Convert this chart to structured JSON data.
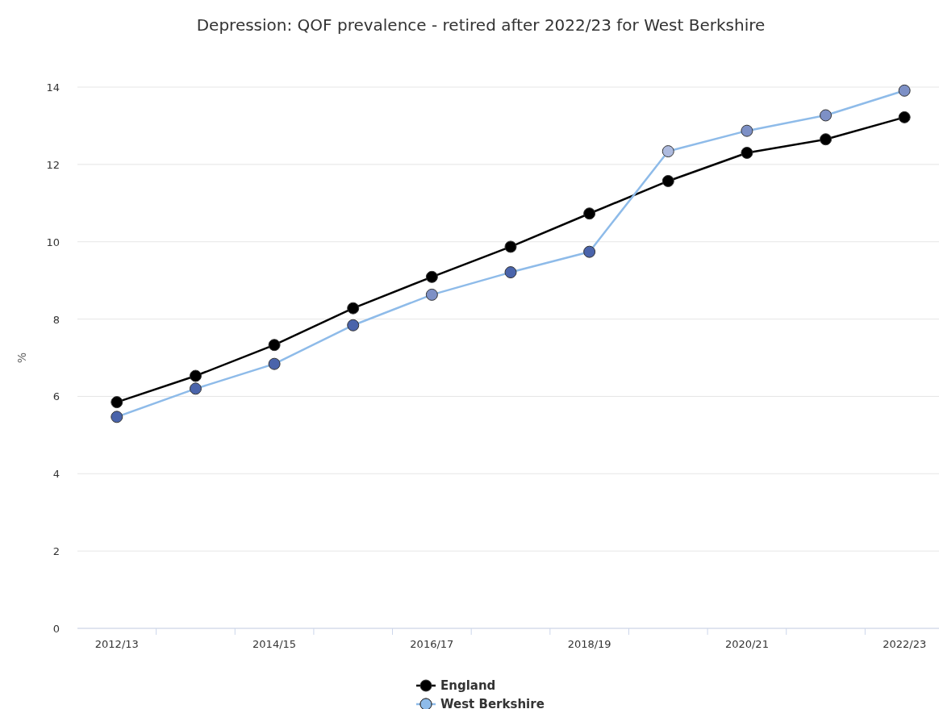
{
  "chart_data": {
    "type": "line",
    "title": "Depression: QOF prevalence - retired after 2022/23 for West Berkshire",
    "ylabel": "%",
    "categories": [
      "2012/13",
      null,
      "2014/15",
      null,
      "2016/17",
      null,
      "2018/19",
      null,
      "2020/21",
      null,
      "2022/23"
    ],
    "series": [
      {
        "name": "England",
        "color": "#000000",
        "values": [
          5.85,
          6.53,
          7.33,
          8.28,
          9.09,
          9.87,
          10.73,
          11.57,
          12.3,
          12.65,
          13.22
        ]
      },
      {
        "name": "West Berkshire",
        "color": "#8ebbe9",
        "colors": [
          "#4a64ab",
          "#4a64ab",
          "#4a64ab",
          "#4a64ab",
          "#7d90c6",
          "#4a64ab",
          "#4a64ab",
          "#aebbdf",
          "#7d90c6",
          "#7d90c6",
          "#7d90c6"
        ],
        "values": [
          5.47,
          6.2,
          6.84,
          7.84,
          8.63,
          9.21,
          9.74,
          12.34,
          12.87,
          13.27,
          13.91
        ]
      }
    ],
    "ylim": [
      0,
      14
    ],
    "yticks": [
      0,
      2,
      4,
      6,
      8,
      10,
      12,
      14
    ],
    "grid": "y",
    "legend": "bottom",
    "marker": "circle",
    "line_style": "solid"
  }
}
